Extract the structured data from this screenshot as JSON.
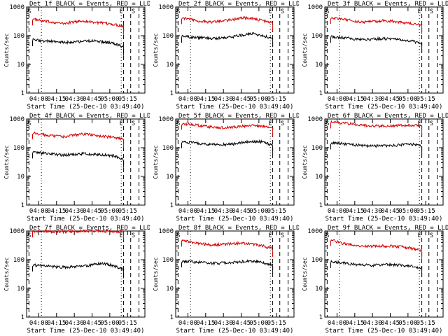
{
  "chart_data": [
    {
      "type": "line",
      "title": "Det 1f BLACK = Events, RED = LLD",
      "xlabel": "Start Time (25-Dec-10 03:49:40)",
      "ylabel": "Counts/sec",
      "yscale": "log",
      "ylim": [
        1,
        1000
      ],
      "xticks": [
        "04:00",
        "04:15",
        "04:30",
        "04:45",
        "05:00",
        "05:15"
      ],
      "yticks": [
        "1",
        "10",
        "100",
        "1000"
      ],
      "markers": [
        "E",
        "S"
      ],
      "series": [
        {
          "color": "#d40000",
          "level": [
            380,
            320,
            300,
            260,
            300,
            330,
            300,
            270,
            250,
            215
          ]
        },
        {
          "color": "#000000",
          "level": [
            72,
            66,
            62,
            58,
            60,
            64,
            66,
            60,
            54,
            40
          ]
        }
      ]
    },
    {
      "type": "line",
      "title": "Det 2f BLACK = Events, RED = LLD",
      "xlabel": "Start Time (25-Dec-10 03:49:40)",
      "ylabel": "Counts/sec",
      "yscale": "log",
      "ylim": [
        1,
        1000
      ],
      "xticks": [
        "04:00",
        "04:15",
        "04:30",
        "04:45",
        "05:00",
        "05:15"
      ],
      "yticks": [
        "1",
        "10",
        "100",
        "1000"
      ],
      "markers": [
        "E",
        "S"
      ],
      "series": [
        {
          "color": "#d40000",
          "level": [
            420,
            360,
            320,
            300,
            330,
            360,
            420,
            400,
            330,
            290
          ]
        },
        {
          "color": "#000000",
          "level": [
            95,
            90,
            85,
            80,
            85,
            92,
            105,
            120,
            100,
            80
          ]
        }
      ]
    },
    {
      "type": "line",
      "title": "Det 3f BLACK = Events, RED = LLD",
      "xlabel": "Start Time (25-Dec-10 03:49:40)",
      "ylabel": "Counts/sec",
      "yscale": "log",
      "ylim": [
        1,
        1000
      ],
      "xticks": [
        "04:00",
        "04:15",
        "04:30",
        "04:45",
        "05:00",
        "05:15"
      ],
      "yticks": [
        "1",
        "10",
        "100",
        "1000"
      ],
      "markers": [
        "E",
        "S"
      ],
      "series": [
        {
          "color": "#d40000",
          "level": [
            430,
            380,
            340,
            300,
            310,
            330,
            320,
            290,
            270,
            230
          ]
        },
        {
          "color": "#000000",
          "level": [
            95,
            88,
            80,
            72,
            75,
            80,
            76,
            72,
            66,
            52
          ]
        }
      ]
    },
    {
      "type": "line",
      "title": "Det 4f BLACK = Events, RED = LLD",
      "xlabel": "Start Time (25-Dec-10 03:49:40)",
      "ylabel": "Counts/sec",
      "yscale": "log",
      "ylim": [
        1,
        1000
      ],
      "xticks": [
        "04:00",
        "04:15",
        "04:30",
        "04:45",
        "05:00",
        "05:15"
      ],
      "yticks": [
        "1",
        "10",
        "100",
        "1000"
      ],
      "markers": [
        "E",
        "S"
      ],
      "series": [
        {
          "color": "#d40000",
          "level": [
            330,
            290,
            260,
            240,
            270,
            300,
            280,
            250,
            230,
            200
          ]
        },
        {
          "color": "#000000",
          "level": [
            70,
            65,
            60,
            56,
            58,
            62,
            60,
            56,
            52,
            40
          ]
        }
      ]
    },
    {
      "type": "line",
      "title": "Det 5f BLACK = Events, RED = LLD",
      "xlabel": "Start Time (25-Dec-10 03:49:40)",
      "ylabel": "Counts/sec",
      "yscale": "log",
      "ylim": [
        1,
        1000
      ],
      "xticks": [
        "04:00",
        "04:15",
        "04:30",
        "04:45",
        "05:00",
        "05:15"
      ],
      "yticks": [
        "1",
        "10",
        "100",
        "1000"
      ],
      "markers": [
        "E",
        "S"
      ],
      "series": [
        {
          "color": "#d40000",
          "level": [
            700,
            640,
            580,
            520,
            500,
            520,
            560,
            600,
            560,
            480
          ]
        },
        {
          "color": "#000000",
          "level": [
            160,
            150,
            140,
            130,
            128,
            135,
            150,
            170,
            160,
            120
          ]
        }
      ]
    },
    {
      "type": "line",
      "title": "Det 6f BLACK = Events, RED = LLD",
      "xlabel": "Start Time (25-Dec-10 03:49:40)",
      "ylabel": "Counts/sec",
      "yscale": "log",
      "ylim": [
        1,
        1000
      ],
      "xticks": [
        "04:00",
        "04:15",
        "04:30",
        "04:45",
        "05:00",
        "05:15"
      ],
      "yticks": [
        "1",
        "10",
        "100",
        "1000"
      ],
      "markers": [
        "E",
        "S"
      ],
      "series": [
        {
          "color": "#d40000",
          "level": [
            780,
            720,
            680,
            620,
            580,
            560,
            580,
            600,
            620,
            560
          ]
        },
        {
          "color": "#000000",
          "level": [
            145,
            140,
            130,
            120,
            115,
            115,
            118,
            125,
            135,
            110
          ]
        }
      ]
    },
    {
      "type": "line",
      "title": "Det 7f BLACK = Events, RED = LLD",
      "xlabel": "Start Time (25-Dec-10 03:49:40)",
      "ylabel": "Counts/sec",
      "yscale": "log",
      "ylim": [
        1,
        1000
      ],
      "xticks": [
        "04:00",
        "04:15",
        "04:30",
        "04:45",
        "05:00",
        "05:15"
      ],
      "yticks": [
        "1",
        "10",
        "100",
        "1000"
      ],
      "markers": [
        "E",
        "S"
      ],
      "series": [
        {
          "color": "#d40000",
          "level": [
            1000,
            980,
            960,
            950,
            960,
            980,
            1000,
            990,
            980,
            960
          ]
        },
        {
          "color": "#000000",
          "level": [
            65,
            62,
            58,
            55,
            56,
            60,
            66,
            75,
            62,
            45
          ]
        }
      ]
    },
    {
      "type": "line",
      "title": "Det 8f BLACK = Events, RED = LLD",
      "xlabel": "Start Time (25-Dec-10 03:49:40)",
      "ylabel": "Counts/sec",
      "yscale": "log",
      "ylim": [
        1,
        1000
      ],
      "xticks": [
        "04:00",
        "04:15",
        "04:30",
        "04:45",
        "05:00",
        "05:15"
      ],
      "yticks": [
        "1",
        "10",
        "100",
        "1000"
      ],
      "markers": [
        "E",
        "S"
      ],
      "series": [
        {
          "color": "#d40000",
          "level": [
            480,
            400,
            360,
            330,
            340,
            360,
            380,
            350,
            300,
            250
          ]
        },
        {
          "color": "#000000",
          "level": [
            90,
            85,
            80,
            75,
            78,
            82,
            86,
            90,
            80,
            65
          ]
        }
      ]
    },
    {
      "type": "line",
      "title": "Det 9f BLACK = Events, RED = LLD",
      "xlabel": "Start Time (25-Dec-10 03:49:40)",
      "ylabel": "Counts/sec",
      "yscale": "log",
      "ylim": [
        1,
        1000
      ],
      "xticks": [
        "04:00",
        "04:15",
        "04:30",
        "04:45",
        "05:00",
        "05:15"
      ],
      "yticks": [
        "1",
        "10",
        "100",
        "1000"
      ],
      "markers": [
        "E",
        "S"
      ],
      "series": [
        {
          "color": "#d40000",
          "level": [
            500,
            380,
            330,
            300,
            290,
            300,
            300,
            280,
            250,
            210
          ]
        },
        {
          "color": "#000000",
          "level": [
            85,
            80,
            72,
            66,
            64,
            66,
            68,
            64,
            60,
            50
          ]
        }
      ]
    }
  ]
}
